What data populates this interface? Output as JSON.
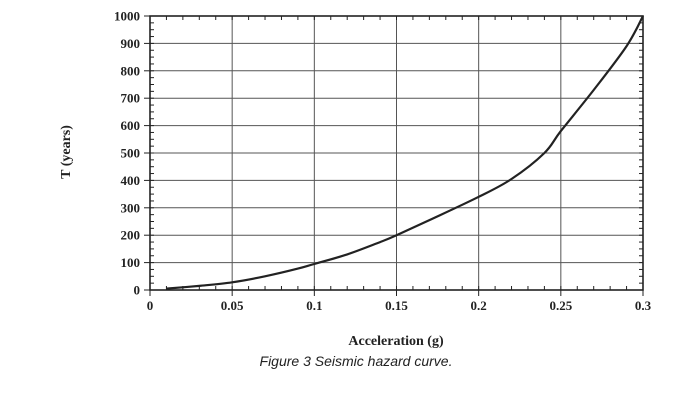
{
  "chart_data": {
    "type": "line",
    "title": "",
    "xlabel": "Acceleration (g)",
    "ylabel": "T (years)",
    "xlim": [
      0,
      0.3
    ],
    "ylim": [
      0,
      1000
    ],
    "grid": true,
    "xticks": [
      "0",
      "0.05",
      "0.1",
      "0.15",
      "0.2",
      "0.25",
      "0.3"
    ],
    "yticks": [
      "0",
      "100",
      "200",
      "300",
      "400",
      "500",
      "600",
      "700",
      "800",
      "900",
      "1000"
    ],
    "series": [
      {
        "x": [
          0.01,
          0.03,
          0.05,
          0.07,
          0.09,
          0.1,
          0.12,
          0.14,
          0.15,
          0.17,
          0.2,
          0.22,
          0.24,
          0.25,
          0.27,
          0.29,
          0.3
        ],
        "y": [
          5,
          15,
          28,
          50,
          78,
          95,
          130,
          175,
          200,
          255,
          340,
          405,
          500,
          580,
          730,
          890,
          1000
        ]
      }
    ]
  },
  "caption": "Figure 3 Seismic hazard curve."
}
